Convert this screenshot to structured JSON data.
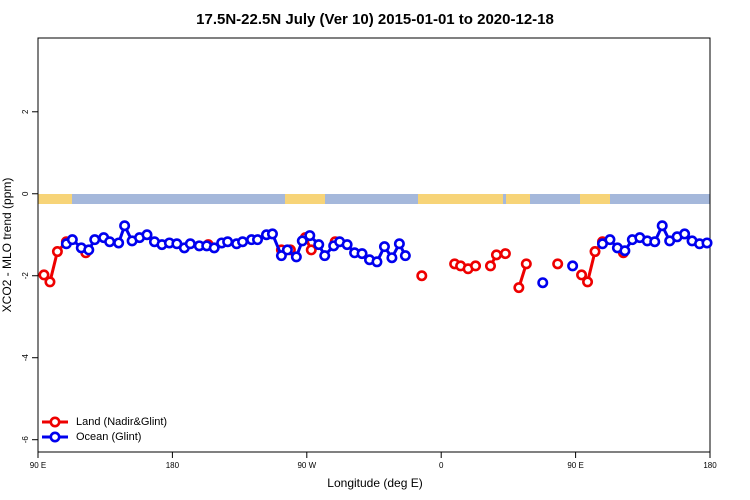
{
  "chart_data": {
    "type": "line",
    "title": "17.5N-22.5N July (Ver 10)   2015-01-01 to 2020-12-18",
    "x_label": "Longitude (deg E)",
    "y_label": "XCO2 - MLO trend (ppm)",
    "xlim": [
      90,
      540
    ],
    "ylim": [
      -6.3,
      3.8
    ],
    "xticks": [
      {
        "value": 90,
        "label": "90 E"
      },
      180,
      {
        "value": 270,
        "label": "90 W"
      },
      {
        "value": 360,
        "label": "0"
      },
      {
        "value": 450,
        "label": "90 E"
      },
      {
        "value": 540,
        "label": "180"
      }
    ],
    "yticks": [
      2,
      0,
      -2,
      -4,
      -6
    ],
    "legend": "bottom-left",
    "series": [
      {
        "name": "Land (Nadir&Glint)",
        "color": "#ee0000",
        "x": [
          94,
          98,
          103,
          109,
          null,
          122,
          null,
          204,
          null,
          253,
          259,
          null,
          269,
          273,
          null,
          289,
          null,
          347,
          null,
          369,
          373,
          378,
          383,
          null,
          393,
          397,
          403,
          null,
          412,
          417,
          null,
          438,
          null,
          454,
          458,
          463,
          468,
          null,
          482
        ],
        "values": [
          -1.98,
          -2.15,
          -1.41,
          -1.17,
          null,
          -1.44,
          null,
          -1.24,
          null,
          -1.37,
          -1.37,
          null,
          -1.07,
          -1.37,
          null,
          -1.17,
          null,
          -2.0,
          null,
          -1.71,
          -1.76,
          -1.83,
          -1.76,
          null,
          -1.76,
          -1.49,
          -1.46,
          null,
          -2.29,
          -1.71,
          null,
          -1.71,
          null,
          -1.98,
          -2.15,
          -1.41,
          -1.17,
          null,
          -1.44
        ]
      },
      {
        "name": "Ocean (Glint)",
        "color": "#0000ee",
        "x": [
          109,
          113,
          119,
          124,
          128,
          134,
          138,
          144,
          148,
          153,
          158,
          163,
          168,
          173,
          178,
          183,
          188,
          192,
          198,
          203,
          208,
          213,
          217,
          223,
          227,
          233,
          237,
          243,
          247,
          253,
          257,
          263,
          267,
          272,
          278,
          282,
          288,
          292,
          297,
          302,
          307,
          312,
          317,
          322,
          327,
          332,
          336,
          null,
          428,
          null,
          448,
          null,
          468,
          473,
          478,
          483,
          488,
          493,
          498,
          503,
          508,
          513,
          518,
          523,
          528,
          533,
          538
        ],
        "values": [
          -1.22,
          -1.12,
          -1.32,
          -1.37,
          -1.12,
          -1.07,
          -1.17,
          -1.2,
          -0.78,
          -1.15,
          -1.07,
          -1.0,
          -1.17,
          -1.24,
          -1.2,
          -1.22,
          -1.32,
          -1.22,
          -1.27,
          -1.27,
          -1.32,
          -1.2,
          -1.17,
          -1.22,
          -1.17,
          -1.12,
          -1.12,
          -1.0,
          -0.98,
          -1.51,
          -1.37,
          -1.54,
          -1.15,
          -1.02,
          -1.24,
          -1.51,
          -1.27,
          -1.17,
          -1.24,
          -1.44,
          -1.46,
          -1.61,
          -1.66,
          -1.29,
          -1.56,
          -1.22,
          -1.51,
          null,
          -2.17,
          null,
          -1.76,
          null,
          -1.22,
          -1.12,
          -1.32,
          -1.39,
          -1.12,
          -1.07,
          -1.15,
          -1.17,
          -0.78,
          -1.15,
          -1.05,
          -0.98,
          -1.15,
          -1.22,
          -1.2
        ]
      }
    ]
  }
}
